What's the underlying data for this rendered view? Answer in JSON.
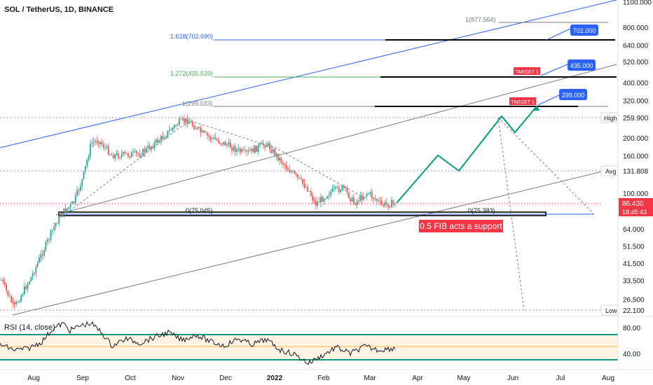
{
  "header": {
    "title": "SOL / TetherUS, 1D, BINANCE",
    "rsi_title": "RSI (14, close)"
  },
  "price_axis": {
    "ticks": [
      "1100.000",
      "800.000",
      "640.000",
      "520.000",
      "400.000",
      "320.000",
      "200.000",
      "160.000",
      "100.000",
      "64.000",
      "51.500",
      "41.500",
      "33.500",
      "26.500"
    ],
    "ticks_values": [
      1100,
      800,
      640,
      520,
      400,
      320,
      200,
      160,
      100,
      64,
      51.5,
      41.5,
      33.5,
      26.5
    ],
    "high_label": "High",
    "high_value": "259.900",
    "avg_label": "Avg",
    "avg_value": "131.808",
    "low_label": "Low",
    "low_value": "22.100",
    "last_price": "86.430",
    "countdown": "18:45:43"
  },
  "rsi_axis": {
    "ticks": [
      "80.00",
      "40.00"
    ]
  },
  "time_axis": {
    "labels": [
      "Aug",
      "Sep",
      "Oct",
      "Nov",
      "Dec",
      "2022",
      "Feb",
      "Mar",
      "Apr",
      "May",
      "Jun",
      "Jul",
      "Aug"
    ]
  },
  "fib_levels": [
    {
      "label": "1(877.564)",
      "value": 877.564,
      "color": "#787b86"
    },
    {
      "label": "1.618(702.690)",
      "value": 702.69,
      "color": "#2962ff"
    },
    {
      "label": "1.272(435.539)",
      "value": 435.539,
      "color": "#4caf50"
    },
    {
      "label": "1(299.033)",
      "value": 299.033,
      "color": "#787b86"
    },
    {
      "label": "0(75.045)",
      "value": 75.045,
      "color": "#131722"
    },
    {
      "label": "0(75.383)",
      "value": 75.383,
      "color": "#131722"
    }
  ],
  "targets": [
    {
      "label": "702.000",
      "value": 702
    },
    {
      "label": "435.000",
      "value": 435
    },
    {
      "label": "299.000",
      "value": 299
    }
  ],
  "target_tags": [
    "TARGET 1",
    "TARGET 1"
  ],
  "annotation": "0.5 FIB acts a support",
  "colors": {
    "projection": "#089981",
    "target_box": "#2962ff",
    "tag": "#f23645",
    "price_tag": "#f23645",
    "rsi_line": "#131722",
    "rsi_band": "#089981"
  }
}
